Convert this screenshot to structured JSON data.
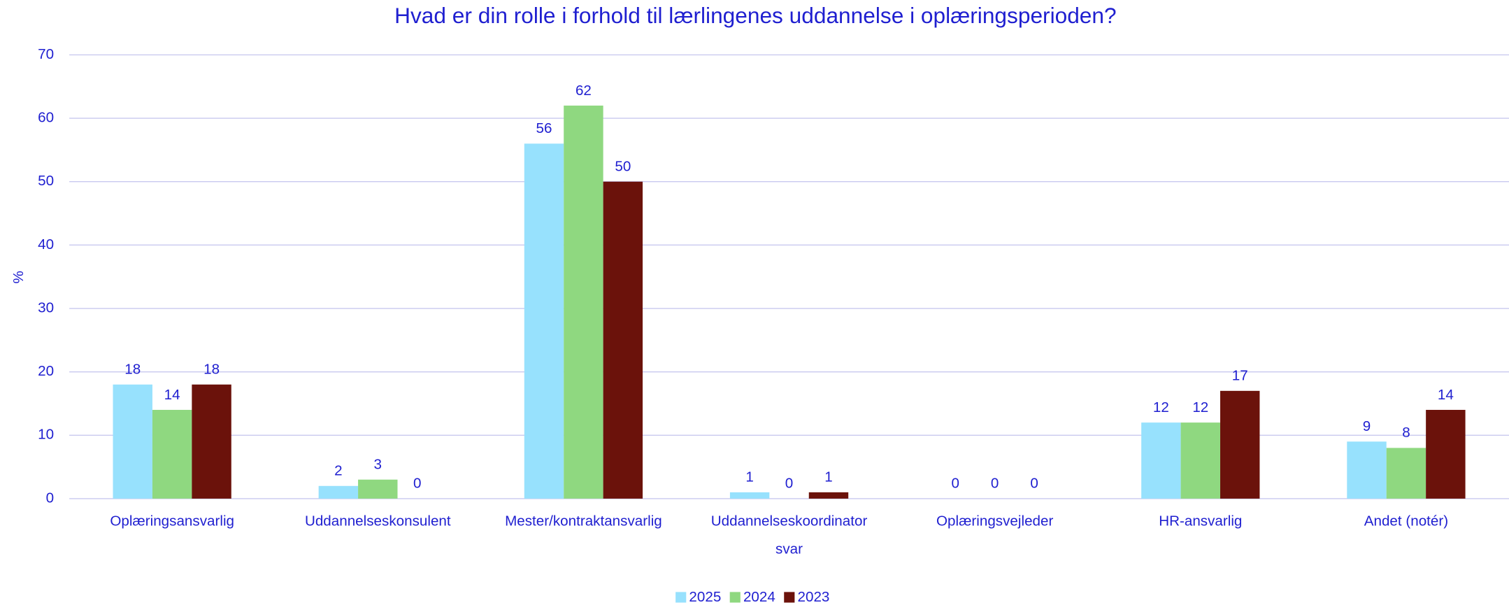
{
  "chart_data": {
    "type": "bar",
    "title": "Hvad er din rolle i forhold til lærlingenes uddannelse i oplæringsperioden?",
    "x_label": "svar",
    "y_label": "%",
    "categories": [
      "Oplæringsansvarlig",
      "Uddannelseskonsulent",
      "Mester/kontraktansvarlig",
      "Uddannelseskoordinator",
      "Oplæringsvejleder",
      "HR-ansvarlig",
      "Andet (notér)"
    ],
    "series": [
      {
        "name": "2025",
        "color": "#97e1fd",
        "values": [
          18,
          2,
          56,
          1,
          0,
          12,
          9
        ]
      },
      {
        "name": "2024",
        "color": "#8fd880",
        "values": [
          14,
          3,
          62,
          0,
          0,
          12,
          8
        ]
      },
      {
        "name": "2023",
        "color": "#6b120b",
        "values": [
          18,
          0,
          50,
          1,
          0,
          17,
          14
        ]
      }
    ],
    "ylim": [
      0,
      70
    ],
    "yticks": [
      0,
      10,
      20,
      30,
      40,
      50,
      60,
      70
    ],
    "grid": true,
    "legend": "bottom"
  }
}
